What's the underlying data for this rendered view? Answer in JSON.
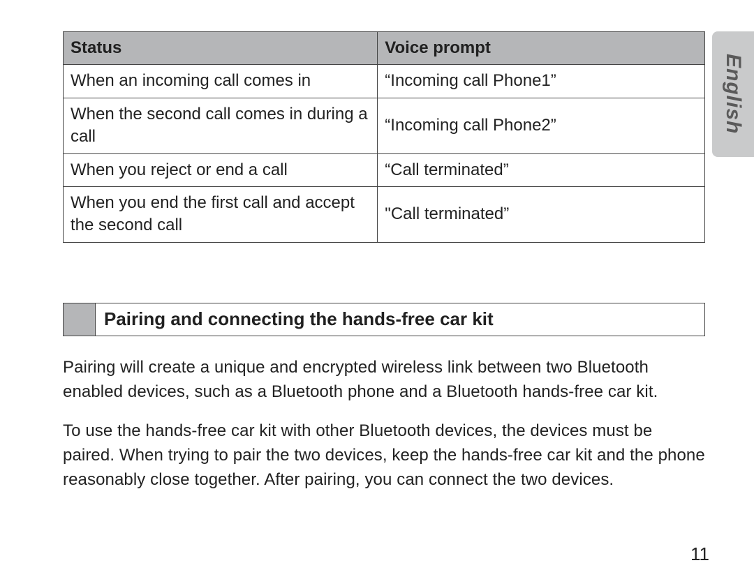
{
  "language_tab": "English",
  "table": {
    "headers": {
      "col1": "Status",
      "col2": "Voice prompt"
    },
    "rows": [
      {
        "status": "When an incoming call comes in",
        "prompt": "“Incoming call Phone1”"
      },
      {
        "status": "When the second call comes in during a call",
        "prompt": "“Incoming call Phone2”"
      },
      {
        "status": "When you reject or end a call",
        "prompt": "“Call terminated”"
      },
      {
        "status": "When you end the first call and accept the second call",
        "prompt": "\"Call terminated”"
      }
    ],
    "header_bg": "#b5b6b8",
    "border_color": "#444444",
    "font_size_pt": 18
  },
  "section": {
    "title": "Pairing and connecting the hands-free car kit",
    "block_bg": "#b5b6b8"
  },
  "paragraphs": {
    "p1": "Pairing will create a unique and encrypted wireless link between two Bluetooth enabled devices, such as a Bluetooth phone and a Bluetooth hands-free car kit.",
    "p2": "To use the hands-free car kit with other Bluetooth devices, the devices must be paired. When trying to pair the two devices, keep the hands-free car kit and the phone reasonably close together. After pairing, you can connect the two devices."
  },
  "page_number": "11",
  "colors": {
    "text": "#222222",
    "background": "#ffffff",
    "tab_bg": "#c9cacb",
    "tab_text": "#5a5a5a"
  }
}
